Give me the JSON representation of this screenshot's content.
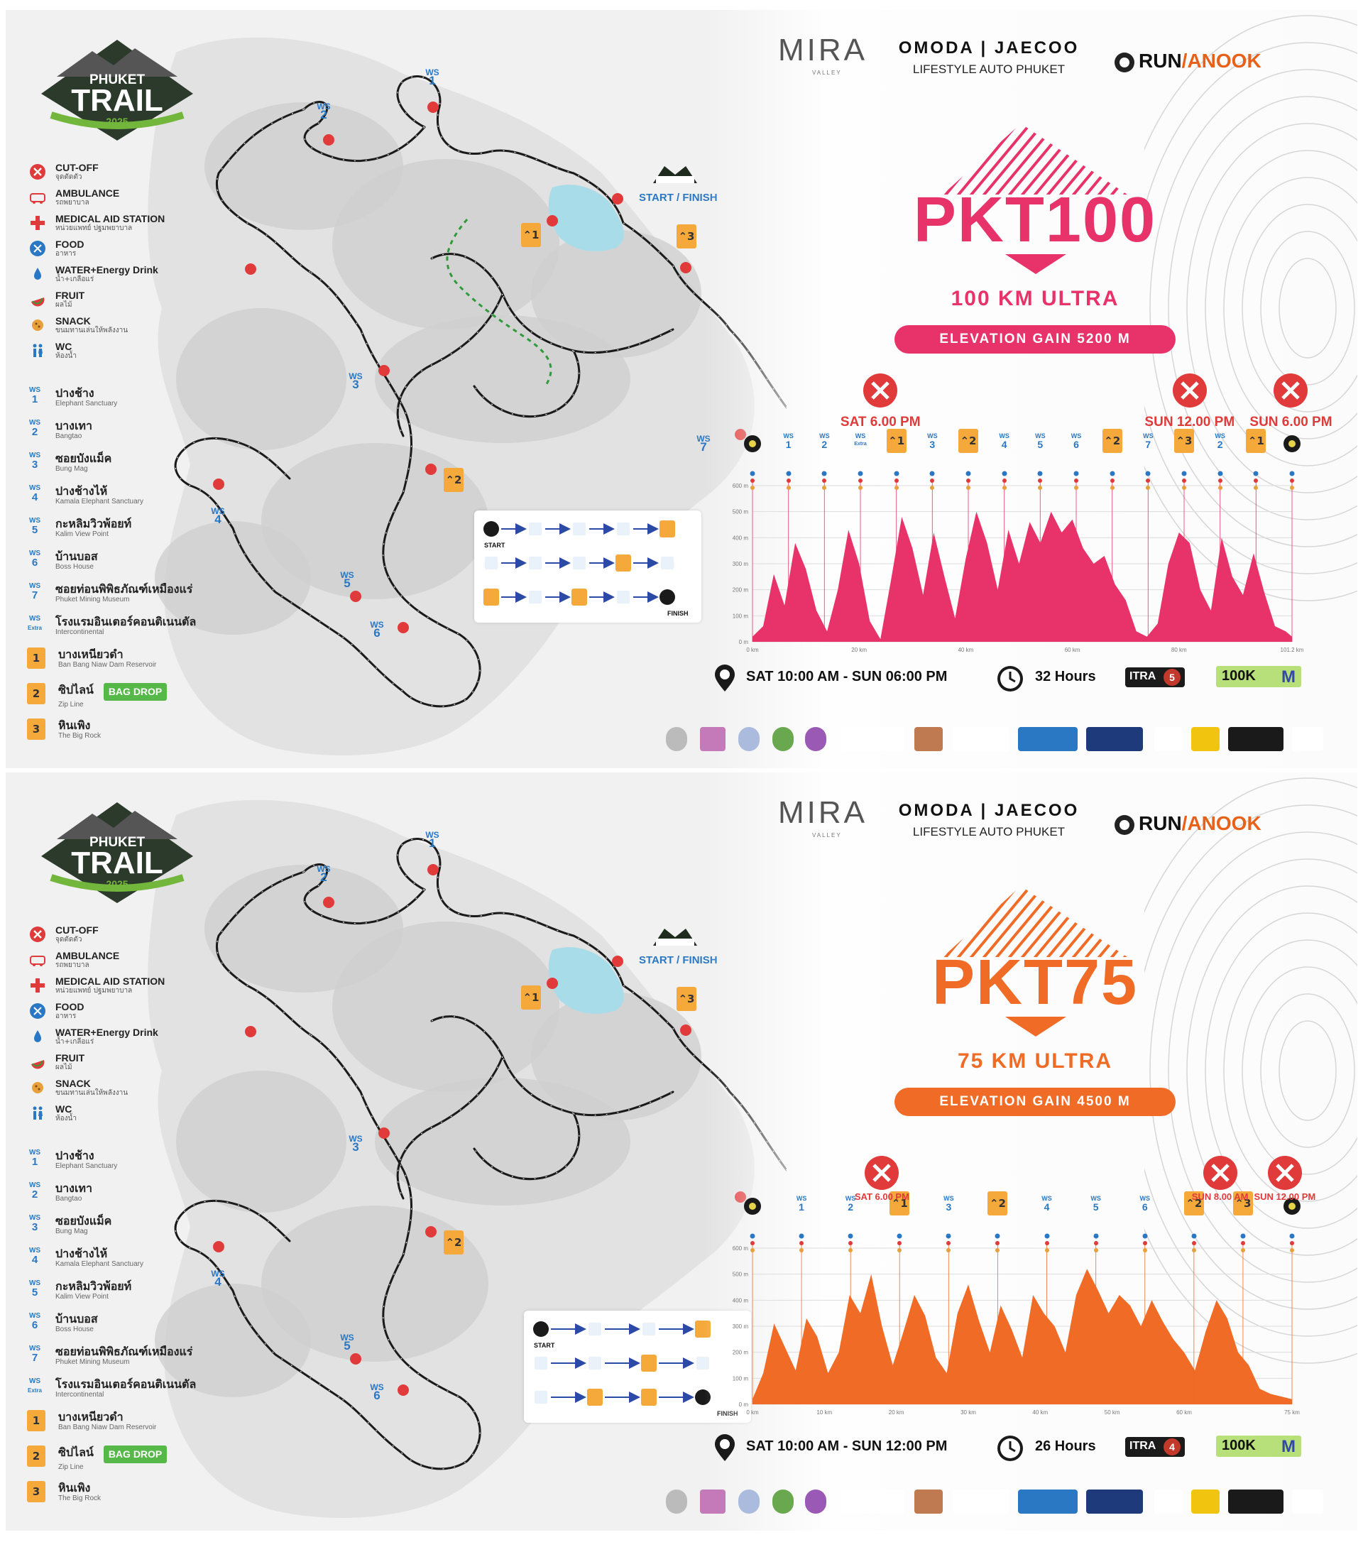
{
  "legend": {
    "items": [
      {
        "key": "cutoff",
        "en": "CUT-OFF",
        "th": "จุดตัดตัว",
        "icon": "cutoff-icon",
        "color": "#e03a3a"
      },
      {
        "key": "ambulance",
        "en": "AMBULANCE",
        "th": "รถพยาบาล",
        "icon": "ambulance-icon",
        "color": "#e03a3a"
      },
      {
        "key": "medical",
        "en": "MEDICAL AID STATION",
        "th": "หน่วยแพทย์ ปฐมพยาบาล",
        "icon": "medical-cross-icon",
        "color": "#e03a3a"
      },
      {
        "key": "food",
        "en": "FOOD",
        "th": "อาหาร",
        "icon": "food-icon",
        "color": "#2a78c4"
      },
      {
        "key": "water",
        "en": "WATER+Energy Drink",
        "th": "น้ำ+เกลือแร่",
        "icon": "water-drop-icon",
        "color": "#2a78c4"
      },
      {
        "key": "fruit",
        "en": "FRUIT",
        "th": "ผลไม้",
        "icon": "fruit-icon",
        "color": "#e03a3a"
      },
      {
        "key": "snack",
        "en": "SNACK",
        "th": "ขนมทานเล่นให้พลังงาน",
        "icon": "snack-icon",
        "color": "#e8a03a"
      },
      {
        "key": "wc",
        "en": "WC",
        "th": "ห้องน้ำ",
        "icon": "wc-icon",
        "color": "#2a78c4"
      }
    ],
    "ws_prefix": "WS",
    "ws_stations": [
      {
        "n": "1",
        "th": "ปางช้าง",
        "en": "Elephant Sanctuary"
      },
      {
        "n": "2",
        "th": "บางเทา",
        "en": "Bangtao"
      },
      {
        "n": "3",
        "th": "ซอยบังแม็ค",
        "en": "Bung Mag"
      },
      {
        "n": "4",
        "th": "ปางช้างไห้",
        "en": "Kamala Elephant Sanctuary"
      },
      {
        "n": "5",
        "th": "กะหลิมวิวพ้อยท์",
        "en": "Kalim View Point"
      },
      {
        "n": "6",
        "th": "บ้านบอส",
        "en": "Boss House"
      },
      {
        "n": "7",
        "th": "ซอยท่อนพิพิธภัณฑ์เหมืองแร่",
        "en": "Phuket Mining Museum"
      },
      {
        "n": "Extra",
        "th": "โรงแรมอินเตอร์คอนติเนนตัล",
        "en": "Intercontinental"
      }
    ],
    "checkpoints": [
      {
        "n": "1",
        "th": "บางเหนียวดำ",
        "en": "Ban Bang Niaw Dam Reservoir",
        "tag": ""
      },
      {
        "n": "2",
        "th": "ซิปไลน์",
        "en": "Zip Line",
        "tag": "BAG DROP"
      },
      {
        "n": "3",
        "th": "หินเพิง",
        "en": "The Big Rock",
        "tag": ""
      }
    ]
  },
  "logo": {
    "line1": "PHUKET",
    "line2": "TRAIL",
    "year": "2025"
  },
  "header": {
    "mira": "MIRA",
    "mira_sub": "VALLEY",
    "omoda_line1": "OMODA | JAECOO",
    "omoda_line2": "LIFESTYLE AUTO PHUKET",
    "run_a": "RUN",
    "run_b": "/ANOOK"
  },
  "map_labels": {
    "start_finish": "START / FINISH",
    "flow_start": "START",
    "flow_finish": "FINISH"
  },
  "races": [
    {
      "id": "pkt100",
      "title": "PKT100",
      "subtitle": "100 KM ULTRA",
      "elevation": "ELEVATION GAIN 5200 M",
      "accent": "#e8336a",
      "fill": "#e8336a",
      "time": "SAT 10:00 AM - SUN 06:00 PM",
      "hours": "32 Hours",
      "itra_label": "ITRA",
      "itra_points": "5",
      "qual": "100K",
      "qual_m": "M",
      "cutoffs": [
        {
          "label": "SAT 6.00 PM",
          "km": 24
        },
        {
          "label": "SUN 12.00 PM",
          "km": 82
        },
        {
          "label": "SUN 6.00 PM",
          "km": 101
        }
      ],
      "km_max": 101.2,
      "x_ticks": [
        "0 km",
        "20 km",
        "40 km",
        "60 km",
        "80 km",
        "101.2 km"
      ],
      "y_ticks": [
        "0 m",
        "100 m",
        "200 m",
        "300 m",
        "400 m",
        "500 m",
        "600 m"
      ],
      "stations": [
        "START",
        "WS 1",
        "WS 2",
        "WS Extra",
        "CP 1",
        "WS 3",
        "CP 2",
        "WS 4",
        "WS 5",
        "WS 6",
        "CP 2",
        "WS 7",
        "CP 3",
        "WS 2",
        "CP 1",
        "FINISH"
      ],
      "profile": [
        [
          0,
          20
        ],
        [
          2,
          60
        ],
        [
          4,
          260
        ],
        [
          6,
          140
        ],
        [
          8,
          380
        ],
        [
          10,
          280
        ],
        [
          12,
          120
        ],
        [
          14,
          40
        ],
        [
          16,
          200
        ],
        [
          18,
          430
        ],
        [
          20,
          300
        ],
        [
          22,
          80
        ],
        [
          24,
          10
        ],
        [
          26,
          240
        ],
        [
          28,
          480
        ],
        [
          30,
          360
        ],
        [
          32,
          180
        ],
        [
          34,
          420
        ],
        [
          36,
          250
        ],
        [
          38,
          90
        ],
        [
          40,
          320
        ],
        [
          42,
          500
        ],
        [
          44,
          380
        ],
        [
          46,
          200
        ],
        [
          48,
          430
        ],
        [
          50,
          300
        ],
        [
          52,
          460
        ],
        [
          54,
          380
        ],
        [
          56,
          500
        ],
        [
          58,
          420
        ],
        [
          60,
          470
        ],
        [
          62,
          360
        ],
        [
          64,
          300
        ],
        [
          66,
          330
        ],
        [
          68,
          220
        ],
        [
          70,
          160
        ],
        [
          72,
          40
        ],
        [
          74,
          20
        ],
        [
          76,
          70
        ],
        [
          78,
          300
        ],
        [
          80,
          420
        ],
        [
          82,
          380
        ],
        [
          84,
          200
        ],
        [
          86,
          120
        ],
        [
          88,
          400
        ],
        [
          90,
          250
        ],
        [
          92,
          180
        ],
        [
          94,
          340
        ],
        [
          96,
          190
        ],
        [
          98,
          60
        ],
        [
          100,
          40
        ],
        [
          101.2,
          20
        ]
      ]
    },
    {
      "id": "pkt75",
      "title": "PKT75",
      "subtitle": "75 KM ULTRA",
      "elevation": "ELEVATION GAIN 4500 M",
      "accent": "#ef6b26",
      "fill": "#ef6b26",
      "time": "SAT 10:00 AM - SUN 12:00 PM",
      "hours": "26 Hours",
      "itra_label": "ITRA",
      "itra_points": "4",
      "qual": "100K",
      "qual_m": "M",
      "cutoffs": [
        {
          "label": "SAT 6.00 PM",
          "km": 18
        },
        {
          "label": "SUN 8.00 AM",
          "km": 65
        },
        {
          "label": "SUN 12.00 PM",
          "km": 74
        }
      ],
      "km_max": 75,
      "x_ticks": [
        "0 km",
        "10 km",
        "20 km",
        "30 km",
        "40 km",
        "50 km",
        "60 km",
        "75 km"
      ],
      "y_ticks": [
        "0 m",
        "100 m",
        "200 m",
        "300 m",
        "400 m",
        "500 m",
        "600 m"
      ],
      "stations": [
        "START",
        "WS 1",
        "WS 2",
        "CP 1",
        "WS 3",
        "CP 2",
        "WS 4",
        "WS 5",
        "WS 6",
        "CP 2",
        "CP 3",
        "FINISH"
      ],
      "profile": [
        [
          0,
          20
        ],
        [
          1.5,
          120
        ],
        [
          3,
          310
        ],
        [
          4.5,
          220
        ],
        [
          6,
          130
        ],
        [
          7.5,
          330
        ],
        [
          9,
          260
        ],
        [
          10.5,
          120
        ],
        [
          12,
          200
        ],
        [
          13.5,
          420
        ],
        [
          15,
          350
        ],
        [
          16.5,
          500
        ],
        [
          18,
          300
        ],
        [
          19.5,
          150
        ],
        [
          21,
          280
        ],
        [
          22.5,
          420
        ],
        [
          24,
          340
        ],
        [
          25.5,
          180
        ],
        [
          27,
          120
        ],
        [
          28.5,
          350
        ],
        [
          30,
          460
        ],
        [
          31.5,
          320
        ],
        [
          33,
          200
        ],
        [
          34.5,
          380
        ],
        [
          36,
          290
        ],
        [
          37.5,
          180
        ],
        [
          39,
          420
        ],
        [
          40.5,
          350
        ],
        [
          42,
          300
        ],
        [
          43.5,
          200
        ],
        [
          45,
          420
        ],
        [
          46.5,
          520
        ],
        [
          48,
          440
        ],
        [
          49.5,
          350
        ],
        [
          51,
          420
        ],
        [
          52.5,
          380
        ],
        [
          54,
          300
        ],
        [
          55.5,
          400
        ],
        [
          57,
          320
        ],
        [
          58.5,
          250
        ],
        [
          60,
          200
        ],
        [
          61.5,
          130
        ],
        [
          63,
          280
        ],
        [
          64.5,
          400
        ],
        [
          66,
          330
        ],
        [
          67.5,
          200
        ],
        [
          69,
          150
        ],
        [
          70.5,
          60
        ],
        [
          72,
          40
        ],
        [
          73.5,
          30
        ],
        [
          75,
          20
        ]
      ]
    }
  ]
}
